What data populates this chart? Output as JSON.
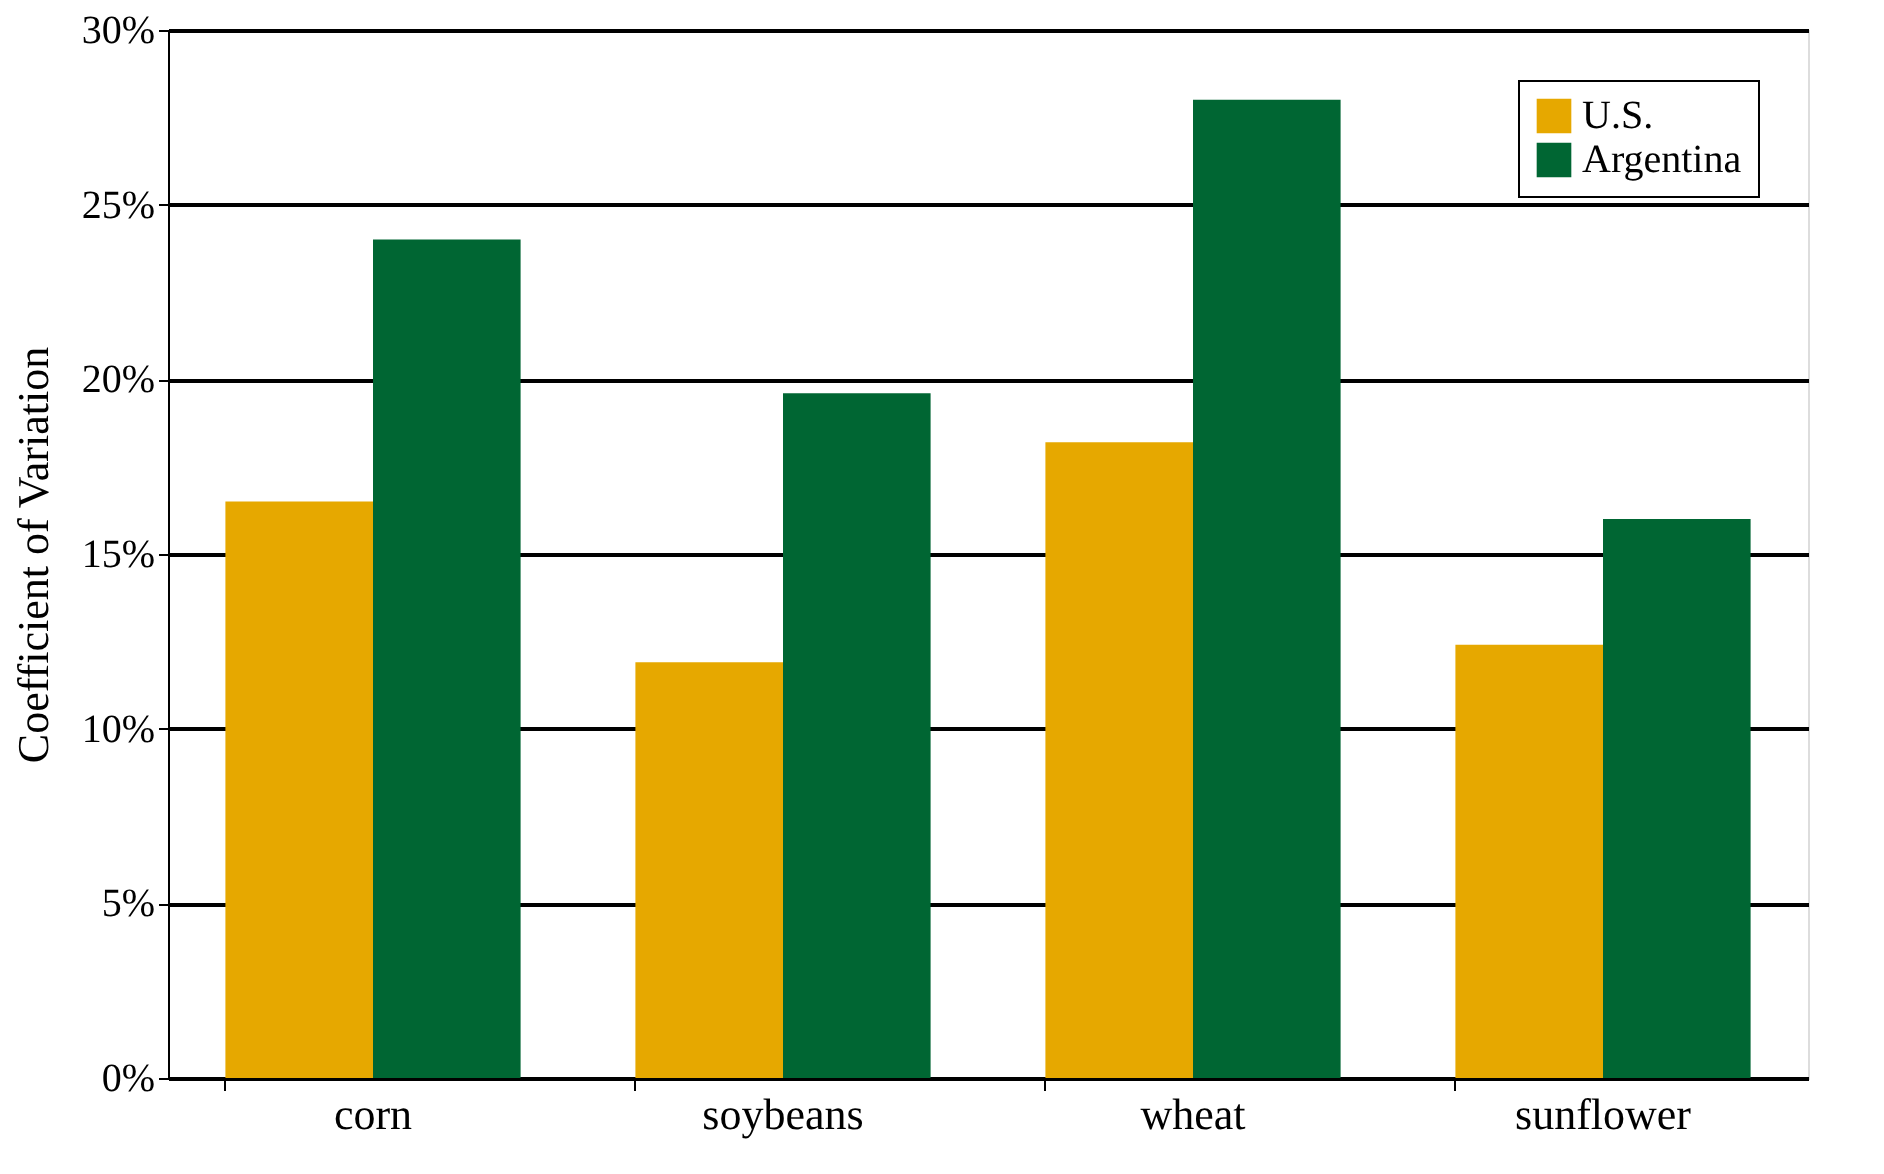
{
  "chart_data": {
    "type": "bar",
    "ylabel": "Coefficient of Variation",
    "categories": [
      "corn",
      "soybeans",
      "wheat",
      "sunflower"
    ],
    "series": [
      {
        "name": "U.S.",
        "color": "#e6a800",
        "values": [
          16.5,
          11.9,
          18.2,
          12.4
        ]
      },
      {
        "name": "Argentina",
        "color": "#006633",
        "values": [
          24.0,
          19.6,
          28.0,
          16.0
        ]
      }
    ],
    "ylim": [
      0,
      30
    ],
    "yticks": [
      {
        "value": 0,
        "label": "0%"
      },
      {
        "value": 5,
        "label": "5%"
      },
      {
        "value": 10,
        "label": "10%"
      },
      {
        "value": 15,
        "label": "15%"
      },
      {
        "value": 20,
        "label": "20%"
      },
      {
        "value": 25,
        "label": "25%"
      },
      {
        "value": 30,
        "label": "30%"
      }
    ],
    "grid": "y",
    "legend": "top right"
  }
}
